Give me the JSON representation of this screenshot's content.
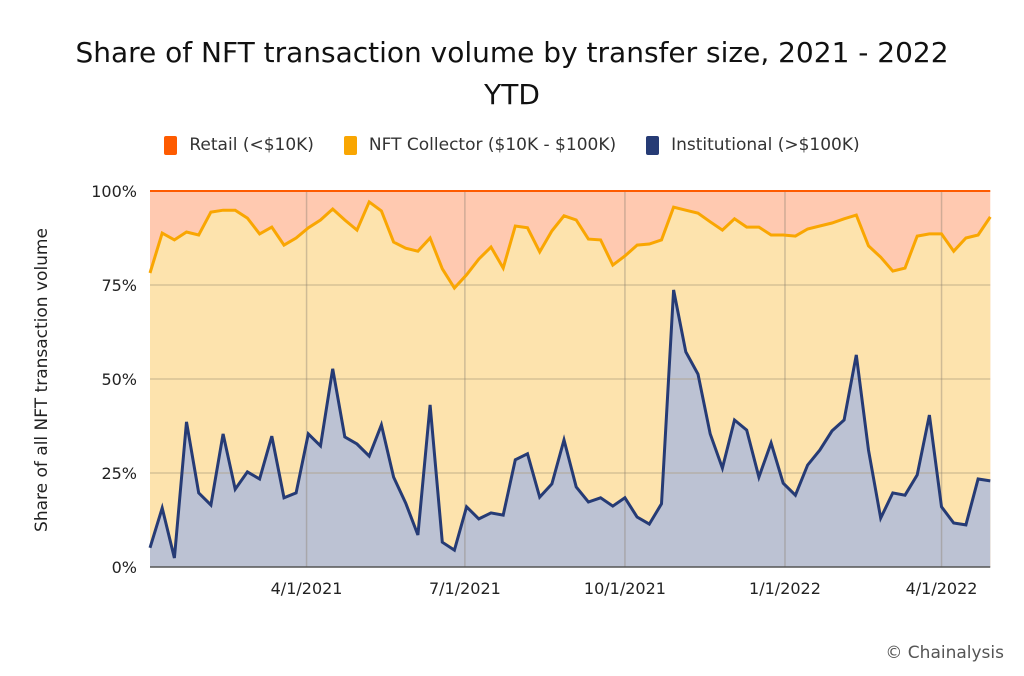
{
  "chart_data": {
    "type": "area",
    "stacked": true,
    "title": "Share of NFT transaction volume by transfer size, 2021 - 2022 YTD",
    "title_lines": [
      "Share of NFT transaction volume by transfer size, 2021 - 2022",
      "YTD"
    ],
    "xlabel": "",
    "ylabel": "Share of all NFT transaction volume",
    "x_unit": "days since 1/1/2021 (weekly)",
    "xlim": [
      0,
      484
    ],
    "ylim": [
      0,
      100
    ],
    "x_ticks": [
      {
        "value": 90,
        "label": "4/1/2021"
      },
      {
        "value": 181,
        "label": "7/1/2021"
      },
      {
        "value": 273,
        "label": "10/1/2021"
      },
      {
        "value": 365,
        "label": "1/1/2022"
      },
      {
        "value": 455,
        "label": "4/1/2022"
      }
    ],
    "y_ticks": [
      {
        "value": 0,
        "label": "0%"
      },
      {
        "value": 25,
        "label": "25%"
      },
      {
        "value": 50,
        "label": "50%"
      },
      {
        "value": 75,
        "label": "75%"
      },
      {
        "value": 100,
        "label": "100%"
      }
    ],
    "grid": true,
    "legend_position": "top",
    "legend": [
      "Retail (<$10K)",
      "NFT Collector ($10K - $100K)",
      "Institutional (>$100K)"
    ],
    "colors": {
      "retail_line": "#fe5b00",
      "retail_fill": "#ffc9b0",
      "collector_line": "#f9a602",
      "collector_fill": "#fde3ad",
      "institutional_line": "#263b75",
      "institutional_fill": "#bcc2d3",
      "grid": "#cdb48c"
    },
    "series_cumulative": [
      {
        "name": "Institutional (>$100K)",
        "values": [
          5.1,
          15.7,
          2.4,
          38.6,
          19.7,
          16.5,
          35.4,
          20.7,
          25.3,
          23.4,
          34.8,
          18.4,
          19.7,
          35.4,
          32.2,
          52.7,
          34.6,
          32.7,
          29.5,
          37.8,
          23.9,
          17.0,
          8.5,
          43.1,
          6.6,
          4.5,
          16.0,
          12.8,
          14.4,
          13.8,
          28.5,
          30.1,
          18.6,
          22.1,
          33.8,
          21.3,
          17.3,
          18.4,
          16.2,
          18.4,
          13.3,
          11.4,
          16.8,
          73.7,
          57.2,
          51.3,
          35.4,
          26.3,
          39.1,
          36.4,
          23.9,
          33.0,
          22.3,
          19.1,
          27.1,
          31.1,
          36.2,
          39.1,
          56.4,
          31.1,
          13.0,
          19.7,
          19.1,
          24.5,
          40.4,
          16.0,
          11.7,
          11.2,
          23.4,
          22.9
        ]
      },
      {
        "name": "Institutional + NFT Collector (cumulative, top of collector band)",
        "values": [
          78.2,
          88.8,
          87.0,
          89.1,
          88.3,
          94.4,
          94.9,
          94.9,
          92.8,
          88.6,
          90.4,
          85.6,
          87.5,
          90.2,
          92.3,
          95.2,
          92.3,
          89.6,
          97.1,
          94.7,
          86.4,
          84.8,
          84.0,
          87.5,
          79.3,
          74.2,
          77.7,
          81.9,
          85.1,
          79.5,
          90.7,
          90.2,
          83.8,
          89.4,
          93.4,
          92.3,
          87.2,
          87.0,
          80.3,
          82.7,
          85.6,
          85.9,
          87.0,
          95.7,
          94.9,
          94.1,
          91.8,
          89.6,
          92.6,
          90.4,
          90.4,
          88.3,
          88.3,
          88.0,
          89.9,
          90.7,
          91.5,
          92.6,
          93.6,
          85.4,
          82.4,
          78.7,
          79.5,
          88.0,
          88.6,
          88.6,
          84.0,
          87.5,
          88.3,
          93.1
        ]
      },
      {
        "name": "Retail (<$10K) cumulative total",
        "value": 100
      }
    ],
    "x_step_days": 7,
    "credit": "© Chainalysis"
  }
}
